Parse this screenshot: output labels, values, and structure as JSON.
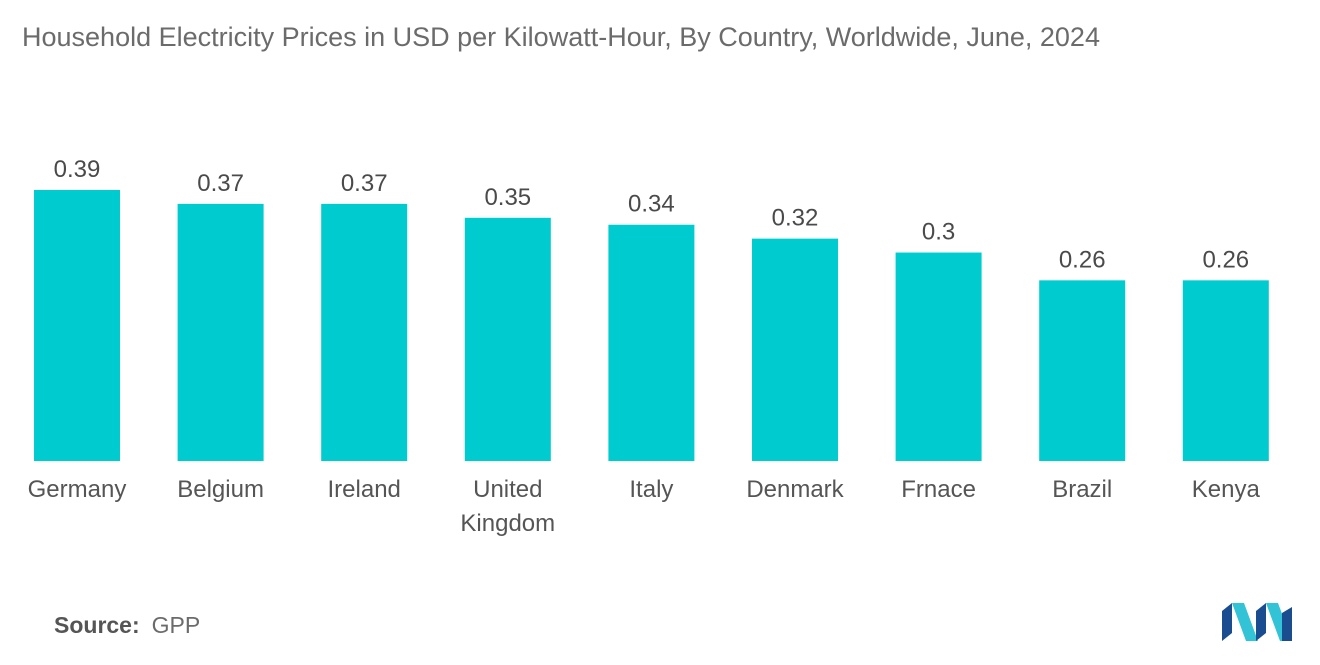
{
  "title": "Household Electricity Prices in USD per Kilowatt-Hour, By Country, Worldwide, June, 2024",
  "source": {
    "label": "Source:",
    "value": "GPP"
  },
  "logo": {
    "icon": "mordor-intelligence-logo",
    "colors": [
      "#1a4d8f",
      "#33c3d6"
    ]
  },
  "chart_data": {
    "type": "bar",
    "categories": [
      "Germany",
      "Belgium",
      "Ireland",
      "United Kingdom",
      "Italy",
      "Denmark",
      "Frnace",
      "Brazil",
      "Kenya"
    ],
    "category_lines": [
      [
        "Germany"
      ],
      [
        "Belgium"
      ],
      [
        "Ireland"
      ],
      [
        "United",
        "Kingdom"
      ],
      [
        "Italy"
      ],
      [
        "Denmark"
      ],
      [
        "Frnace"
      ],
      [
        "Brazil"
      ],
      [
        "Kenya"
      ]
    ],
    "values": [
      0.39,
      0.37,
      0.37,
      0.35,
      0.34,
      0.32,
      0.3,
      0.26,
      0.26
    ],
    "value_labels": [
      "0.39",
      "0.37",
      "0.37",
      "0.35",
      "0.34",
      "0.32",
      "0.3",
      "0.26",
      "0.26"
    ],
    "title": "Household Electricity Prices in USD per Kilowatt-Hour, By Country, Worldwide, June, 2024",
    "xlabel": "",
    "ylabel": "",
    "ylim": [
      0,
      0.39
    ],
    "grid": false,
    "legend": "none",
    "bar_color": "#00cccf"
  }
}
